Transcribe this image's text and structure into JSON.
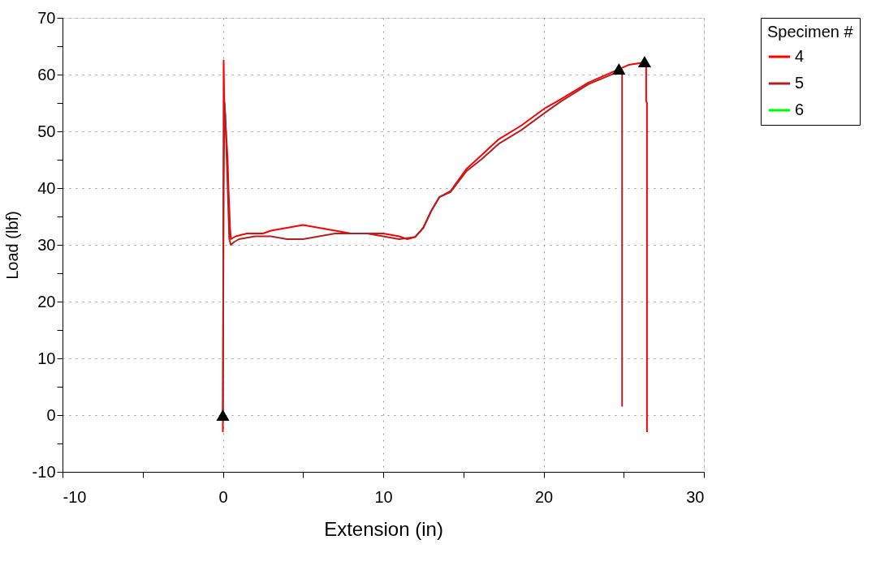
{
  "chart_data": {
    "type": "line",
    "xlabel": "Extension (in)",
    "ylabel": "Load (lbf)",
    "legend_title": "Specimen #",
    "legend": "right",
    "grid": true,
    "line_style": "solid",
    "marker": "none",
    "xlim": [
      -10,
      30
    ],
    "xticks": [
      -10,
      {
        "value": -5,
        "label": null
      },
      0,
      {
        "value": 5,
        "label": null
      },
      10,
      {
        "value": 15,
        "label": null
      },
      20,
      {
        "value": 25,
        "label": null
      },
      30
    ],
    "ylim": [
      -10,
      70
    ],
    "yticks": [
      -10,
      {
        "value": -5,
        "label": null
      },
      0,
      {
        "value": 5,
        "label": null
      },
      10,
      {
        "value": 15,
        "label": null
      },
      20,
      {
        "value": 25,
        "label": null
      },
      30,
      {
        "value": 35,
        "label": null
      },
      40,
      {
        "value": 45,
        "label": null
      },
      50,
      {
        "value": 55,
        "label": null
      },
      60,
      {
        "value": 65,
        "label": null
      },
      70
    ],
    "series": [
      {
        "name": "4",
        "color": "#ff0000",
        "x": [
          0,
          0.02,
          0.05,
          0.08,
          0.1,
          0.2,
          0.3,
          0.35,
          0.45,
          0.5,
          0.8,
          1.5,
          2.5,
          3,
          4,
          5,
          6,
          7,
          8,
          9,
          10,
          11,
          11.5,
          12,
          12.5,
          13,
          13.5,
          14.2,
          15.2,
          16.1,
          17.2,
          18.6,
          20.1,
          21.1,
          22.8,
          24.5,
          25.3,
          26.2,
          26.4,
          26.4,
          26.45,
          26.45
        ],
        "values": [
          -3,
          20,
          62.5,
          56,
          55,
          50,
          45,
          40,
          33,
          31,
          31.5,
          32,
          32,
          32.5,
          33,
          33.5,
          33,
          32.5,
          32,
          32,
          32,
          31.5,
          31,
          31.4,
          33,
          36,
          38.4,
          39.5,
          43.4,
          45.7,
          48.6,
          51,
          54.1,
          55.7,
          58.6,
          60.7,
          61.7,
          62.1,
          62.1,
          55.3,
          55,
          -3
        ]
      },
      {
        "name": "5",
        "color": "#b22222",
        "x": [
          0,
          0.05,
          0.1,
          0.15,
          0.3,
          0.4,
          0.5,
          0.7,
          1,
          2,
          3,
          4,
          5,
          6,
          7,
          8,
          9,
          10,
          11,
          12,
          12.5,
          13,
          13.5,
          14.2,
          15.2,
          16.1,
          17.2,
          18.6,
          20.1,
          21.1,
          22.8,
          24.5,
          24.9,
          24.9
        ],
        "values": [
          0,
          40,
          55,
          53,
          40,
          31,
          30,
          30.5,
          31,
          31.5,
          31.5,
          31,
          31,
          31.5,
          32,
          32,
          32,
          31.5,
          31,
          31.4,
          33,
          36,
          38.4,
          39.3,
          43,
          45,
          47.8,
          50.2,
          53.3,
          55.3,
          58.3,
          60.3,
          60.8,
          1.5
        ]
      },
      {
        "name": "6",
        "color": "#00ff00"
      },
      {
        "type": "scatter",
        "marker": "triangle",
        "color": "#000000",
        "x": [
          0,
          24.7,
          26.3
        ],
        "values": [
          0,
          61,
          62.3
        ]
      }
    ]
  }
}
